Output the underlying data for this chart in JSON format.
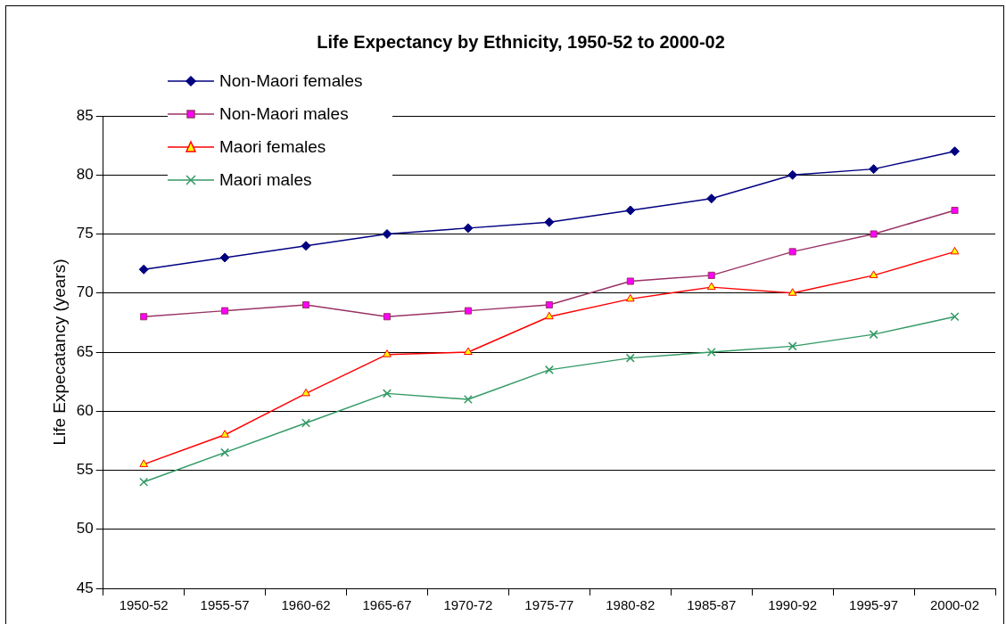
{
  "chart_data": {
    "type": "line",
    "title": "Life Expectancy by Ethnicity, 1950-52 to 2000-02",
    "ylabel": "Life Expecatancy (years)",
    "categories": [
      "1950-52",
      "1955-57",
      "1960-62",
      "1965-67",
      "1970-72",
      "1975-77",
      "1980-82",
      "1985-87",
      "1990-92",
      "1995-97",
      "2000-02"
    ],
    "series": [
      {
        "name": "Non-Maori females",
        "color": "#000080",
        "marker": "diamond",
        "values": [
          72,
          73,
          74,
          75,
          75.5,
          76,
          77,
          78,
          80,
          80.5,
          82
        ]
      },
      {
        "name": "Non-Maori males",
        "color": "#993366",
        "marker": "square",
        "values": [
          68,
          68.5,
          69,
          68,
          68.5,
          69,
          71,
          71.5,
          73.5,
          75,
          77
        ]
      },
      {
        "name": "Maori females",
        "color": "#ff0000",
        "marker": "triangle",
        "values": [
          55.5,
          58,
          61.5,
          64.8,
          65,
          68,
          69.5,
          70.5,
          70,
          71.5,
          73.5
        ]
      },
      {
        "name": "Maori males",
        "color": "#339966",
        "marker": "cross",
        "values": [
          54,
          56.5,
          59,
          61.5,
          61,
          63.5,
          64.5,
          65,
          65.5,
          66.5,
          68
        ]
      }
    ],
    "ylim": [
      45,
      85
    ],
    "yticks": [
      45,
      50,
      55,
      60,
      65,
      70,
      75,
      80,
      85
    ],
    "grid": "y",
    "legend": "top left",
    "line_style": "solid"
  }
}
